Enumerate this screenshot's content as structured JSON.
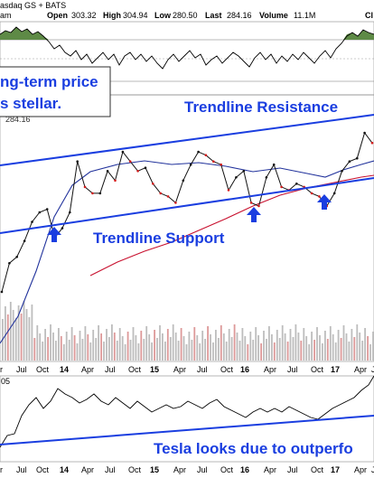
{
  "header": {
    "title_fragment": "asdaq GS + BATS",
    "period_fragment": "am",
    "open_label": "Open",
    "open_value": "303.32",
    "high_label": "High",
    "high_value": "304.94",
    "low_label": "Low",
    "low_value": "280.50",
    "last_label": "Last",
    "last_value": "284.16",
    "volume_label": "Volume",
    "volume_value": "11.1M",
    "trailing_fragment": "Cl"
  },
  "price_panel": {
    "last_price_label": "284.16",
    "callout_line1": "ng-term price",
    "callout_line2": "s stellar."
  },
  "annotations": {
    "resistance": "Trendline Resistance",
    "support": "Trendline Support",
    "bottom": "Tesla looks due to outperfo"
  },
  "indicator_panel": {
    "level_label": "05"
  },
  "x_axis": {
    "ticks": [
      "r",
      "Jul",
      "Oct",
      "14",
      "Apr",
      "Jul",
      "Oct",
      "15",
      "Apr",
      "Jul",
      "Oct",
      "16",
      "Apr",
      "Jul",
      "Oct",
      "17",
      "Apr",
      "J"
    ],
    "year_ticks": [
      "14",
      "15",
      "16",
      "17"
    ]
  },
  "colors": {
    "annotation_blue": "#1a3ee0",
    "price_black": "#111111",
    "down_red": "#d41c1c",
    "ma_short": "#22339c",
    "ma_long": "#c8102e",
    "volume_fill": "#bdbdbd",
    "rsi_fill": "#5e8a46"
  },
  "arrows": [
    "support-arrow-1",
    "support-arrow-2",
    "support-arrow-3"
  ],
  "chart_data": {
    "type": "line",
    "x": [
      "2013-04",
      "2013-05",
      "2013-06",
      "2013-07",
      "2013-08",
      "2013-09",
      "2013-10",
      "2013-11",
      "2013-12",
      "2014-01",
      "2014-02",
      "2014-03",
      "2014-04",
      "2014-05",
      "2014-06",
      "2014-07",
      "2014-08",
      "2014-09",
      "2014-10",
      "2014-11",
      "2014-12",
      "2015-01",
      "2015-02",
      "2015-03",
      "2015-04",
      "2015-05",
      "2015-06",
      "2015-07",
      "2015-08",
      "2015-09",
      "2015-10",
      "2015-11",
      "2015-12",
      "2016-01",
      "2016-02",
      "2016-03",
      "2016-04",
      "2016-05",
      "2016-06",
      "2016-07",
      "2016-08",
      "2016-09",
      "2016-10",
      "2016-11",
      "2016-12",
      "2017-01",
      "2017-02",
      "2017-03",
      "2017-04",
      "2017-05"
    ],
    "series": [
      {
        "values": [
          50,
          95,
          105,
          130,
          160,
          175,
          180,
          135,
          150,
          175,
          255,
          215,
          205,
          205,
          240,
          225,
          270,
          255,
          240,
          245,
          220,
          205,
          200,
          190,
          225,
          250,
          270,
          265,
          255,
          250,
          210,
          230,
          240,
          190,
          185,
          230,
          250,
          215,
          210,
          220,
          215,
          205,
          200,
          185,
          205,
          240,
          255,
          260,
          300,
          284.16
        ]
      }
    ]
  }
}
